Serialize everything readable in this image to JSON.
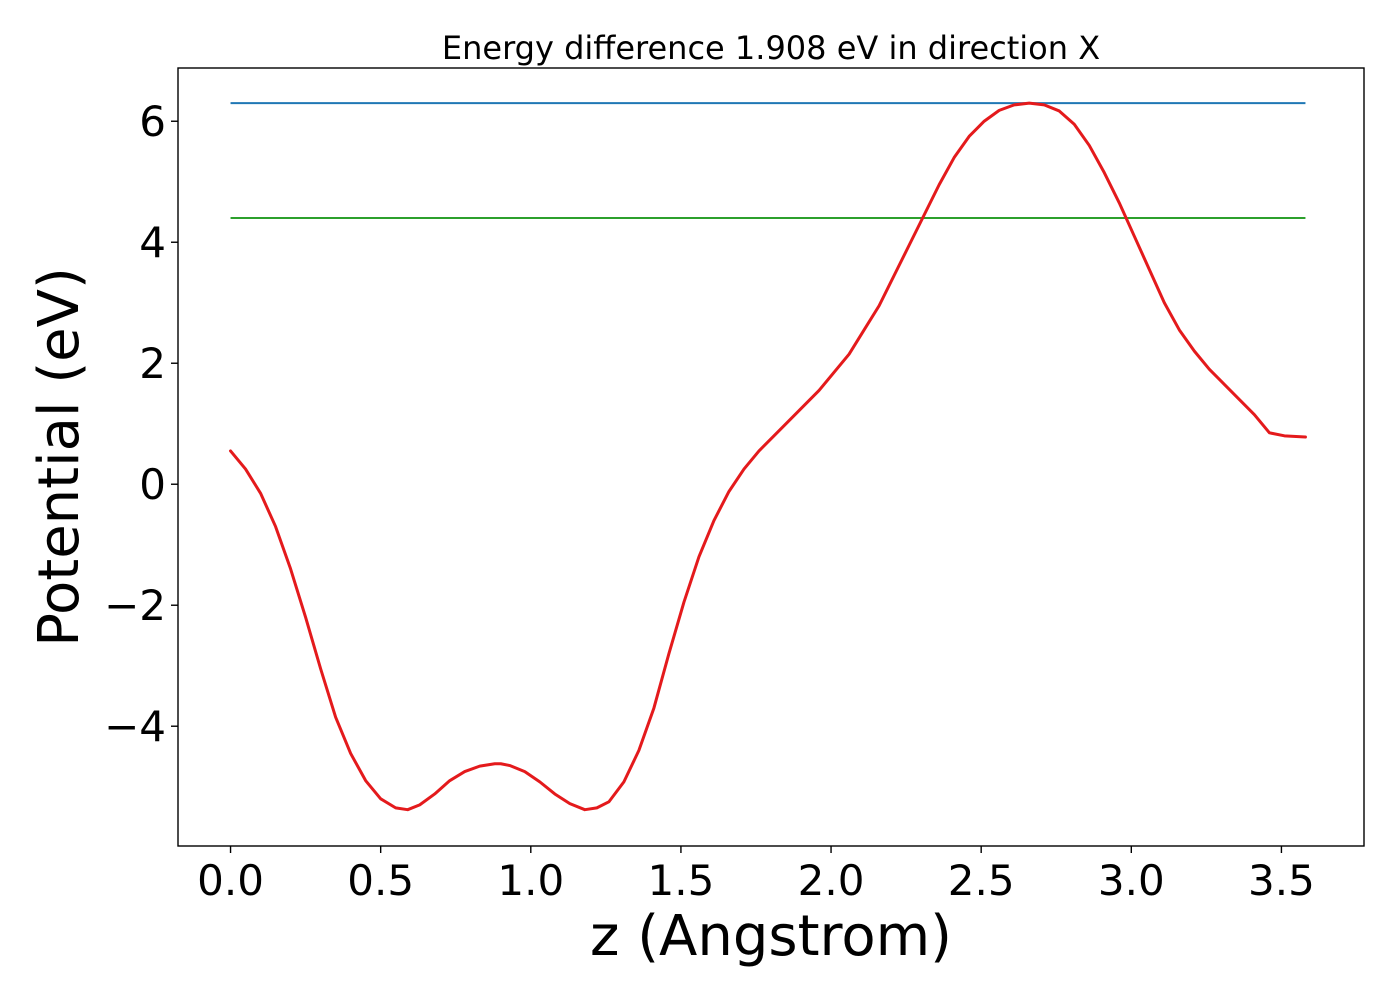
{
  "chart_data": {
    "type": "line",
    "title": "Energy difference 1.908 eV in direction X",
    "xlabel": "z (Angstrom)",
    "ylabel": "Potential (eV)",
    "xlim": [
      -0.175,
      3.775
    ],
    "ylim": [
      -5.98,
      6.88
    ],
    "xticks": [
      0.0,
      0.5,
      1.0,
      1.5,
      2.0,
      2.5,
      3.0,
      3.5
    ],
    "xtick_labels": [
      "0.0",
      "0.5",
      "1.0",
      "1.5",
      "2.0",
      "2.5",
      "3.0",
      "3.5"
    ],
    "yticks": [
      -4,
      -2,
      0,
      2,
      4,
      6
    ],
    "ytick_labels": [
      "−4",
      "−2",
      "0",
      "2",
      "4",
      "6"
    ],
    "grid": false,
    "hlines": [
      {
        "y": 6.3,
        "x_range": [
          0.0,
          3.58
        ],
        "color": "#1f77b4"
      },
      {
        "y": 4.4,
        "x_range": [
          0.0,
          3.58
        ],
        "color": "#2ca02c"
      }
    ],
    "series": [
      {
        "color": "#e41a1c",
        "x": [
          0.0,
          0.05,
          0.1,
          0.15,
          0.2,
          0.25,
          0.3,
          0.35,
          0.4,
          0.45,
          0.5,
          0.55,
          0.59,
          0.63,
          0.68,
          0.73,
          0.78,
          0.83,
          0.88,
          0.9,
          0.93,
          0.98,
          1.03,
          1.08,
          1.13,
          1.18,
          1.22,
          1.26,
          1.31,
          1.36,
          1.41,
          1.46,
          1.51,
          1.56,
          1.61,
          1.66,
          1.71,
          1.76,
          1.81,
          1.86,
          1.91,
          1.96,
          2.01,
          2.06,
          2.11,
          2.16,
          2.21,
          2.26,
          2.31,
          2.36,
          2.41,
          2.46,
          2.51,
          2.56,
          2.61,
          2.66,
          2.71,
          2.76,
          2.81,
          2.86,
          2.91,
          2.96,
          3.01,
          3.06,
          3.11,
          3.16,
          3.21,
          3.26,
          3.31,
          3.36,
          3.41,
          3.46,
          3.51,
          3.58
        ],
        "y": [
          0.55,
          0.25,
          -0.15,
          -0.7,
          -1.4,
          -2.2,
          -3.05,
          -3.85,
          -4.45,
          -4.9,
          -5.2,
          -5.35,
          -5.38,
          -5.3,
          -5.12,
          -4.9,
          -4.75,
          -4.66,
          -4.62,
          -4.62,
          -4.65,
          -4.75,
          -4.92,
          -5.12,
          -5.28,
          -5.38,
          -5.35,
          -5.25,
          -4.92,
          -4.4,
          -3.7,
          -2.8,
          -1.95,
          -1.2,
          -0.6,
          -0.12,
          0.25,
          0.55,
          0.8,
          1.05,
          1.3,
          1.55,
          1.85,
          2.15,
          2.55,
          2.95,
          3.45,
          3.95,
          4.45,
          4.95,
          5.4,
          5.75,
          6.0,
          6.18,
          6.27,
          6.3,
          6.27,
          6.17,
          5.95,
          5.6,
          5.15,
          4.65,
          4.1,
          3.55,
          3.0,
          2.55,
          2.2,
          1.9,
          1.65,
          1.4,
          1.15,
          0.85,
          0.8,
          0.78
        ]
      }
    ]
  }
}
